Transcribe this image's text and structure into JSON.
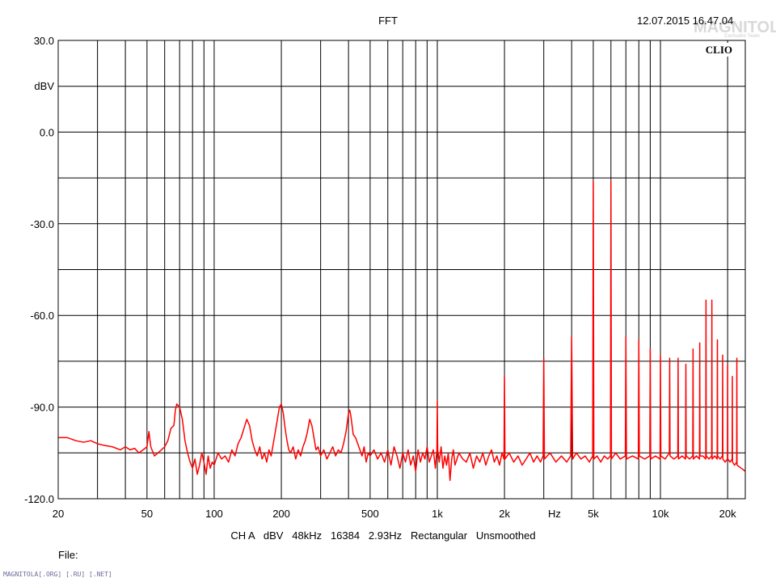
{
  "chart_data": {
    "type": "line",
    "title": "FFT",
    "timestamp": "12.07.2015 16.47.04",
    "brand": "CLIO",
    "xlabel": "Hz",
    "ylabel": "dBV",
    "x_scale": "log",
    "xlim": [
      20,
      24000
    ],
    "ylim": [
      -120,
      30
    ],
    "grid": true,
    "x_ticks": [
      {
        "value": 20,
        "label": "20"
      },
      {
        "value": 50,
        "label": "50"
      },
      {
        "value": 100,
        "label": "100"
      },
      {
        "value": 200,
        "label": "200"
      },
      {
        "value": 500,
        "label": "500"
      },
      {
        "value": 1000,
        "label": "1k"
      },
      {
        "value": 2000,
        "label": "2k"
      },
      {
        "value": 5000,
        "label": "5k"
      },
      {
        "value": 10000,
        "label": "10k"
      },
      {
        "value": 20000,
        "label": "20k"
      }
    ],
    "y_ticks": [
      {
        "value": 30,
        "label": "30.0"
      },
      {
        "value": 0,
        "label": "0.0"
      },
      {
        "value": -30,
        "label": "-30.0"
      },
      {
        "value": -60,
        "label": "-60.0"
      },
      {
        "value": -90,
        "label": "-90.0"
      },
      {
        "value": -120,
        "label": "-120.0"
      }
    ],
    "series": [
      {
        "color": "#ff0000",
        "points": [
          [
            20,
            -100
          ],
          [
            22,
            -100
          ],
          [
            24,
            -101
          ],
          [
            26,
            -101.5
          ],
          [
            28,
            -101
          ],
          [
            30,
            -102
          ],
          [
            32,
            -102.5
          ],
          [
            35,
            -103
          ],
          [
            38,
            -104
          ],
          [
            40,
            -103
          ],
          [
            42,
            -104
          ],
          [
            44,
            -103.5
          ],
          [
            46,
            -105
          ],
          [
            48,
            -104
          ],
          [
            50,
            -103
          ],
          [
            51,
            -98
          ],
          [
            52,
            -103
          ],
          [
            54,
            -106
          ],
          [
            56,
            -105
          ],
          [
            58,
            -104
          ],
          [
            60,
            -103
          ],
          [
            62,
            -101
          ],
          [
            64,
            -97
          ],
          [
            66,
            -96
          ],
          [
            67,
            -91
          ],
          [
            68,
            -89
          ],
          [
            70,
            -90
          ],
          [
            72,
            -94
          ],
          [
            74,
            -101
          ],
          [
            76,
            -105
          ],
          [
            78,
            -108
          ],
          [
            80,
            -110
          ],
          [
            82,
            -107
          ],
          [
            84,
            -112
          ],
          [
            86,
            -109
          ],
          [
            88,
            -105
          ],
          [
            90,
            -108
          ],
          [
            92,
            -112
          ],
          [
            94,
            -106
          ],
          [
            96,
            -110
          ],
          [
            98,
            -108
          ],
          [
            100,
            -109
          ],
          [
            104,
            -105
          ],
          [
            108,
            -107
          ],
          [
            112,
            -106
          ],
          [
            116,
            -108
          ],
          [
            120,
            -104
          ],
          [
            124,
            -106
          ],
          [
            128,
            -102
          ],
          [
            132,
            -100
          ],
          [
            136,
            -97
          ],
          [
            140,
            -94
          ],
          [
            144,
            -96
          ],
          [
            148,
            -101
          ],
          [
            152,
            -104
          ],
          [
            156,
            -106
          ],
          [
            160,
            -103
          ],
          [
            164,
            -107
          ],
          [
            168,
            -105
          ],
          [
            172,
            -108
          ],
          [
            176,
            -104
          ],
          [
            180,
            -106
          ],
          [
            184,
            -102
          ],
          [
            188,
            -98
          ],
          [
            192,
            -94
          ],
          [
            196,
            -90
          ],
          [
            200,
            -89
          ],
          [
            204,
            -92
          ],
          [
            208,
            -97
          ],
          [
            212,
            -101
          ],
          [
            216,
            -104
          ],
          [
            220,
            -105
          ],
          [
            226,
            -103
          ],
          [
            232,
            -107
          ],
          [
            238,
            -104
          ],
          [
            244,
            -106
          ],
          [
            250,
            -103
          ],
          [
            256,
            -101
          ],
          [
            262,
            -98
          ],
          [
            268,
            -94
          ],
          [
            274,
            -96
          ],
          [
            280,
            -100
          ],
          [
            286,
            -104
          ],
          [
            292,
            -103
          ],
          [
            300,
            -106
          ],
          [
            310,
            -104
          ],
          [
            320,
            -107
          ],
          [
            330,
            -105
          ],
          [
            340,
            -103
          ],
          [
            350,
            -106
          ],
          [
            360,
            -104
          ],
          [
            370,
            -105
          ],
          [
            380,
            -102
          ],
          [
            390,
            -98
          ],
          [
            395,
            -95
          ],
          [
            400,
            -92
          ],
          [
            405,
            -91
          ],
          [
            410,
            -93
          ],
          [
            415,
            -96
          ],
          [
            420,
            -99
          ],
          [
            430,
            -100
          ],
          [
            440,
            -102
          ],
          [
            450,
            -104
          ],
          [
            460,
            -106
          ],
          [
            470,
            -103
          ],
          [
            480,
            -108
          ],
          [
            490,
            -105
          ],
          [
            500,
            -106
          ],
          [
            520,
            -104
          ],
          [
            540,
            -107
          ],
          [
            560,
            -105
          ],
          [
            580,
            -108
          ],
          [
            600,
            -104
          ],
          [
            620,
            -109
          ],
          [
            640,
            -103
          ],
          [
            660,
            -106
          ],
          [
            680,
            -110
          ],
          [
            700,
            -105
          ],
          [
            720,
            -108
          ],
          [
            740,
            -104
          ],
          [
            760,
            -109
          ],
          [
            780,
            -106
          ],
          [
            800,
            -111
          ],
          [
            820,
            -104
          ],
          [
            840,
            -108
          ],
          [
            860,
            -105
          ],
          [
            880,
            -107
          ],
          [
            900,
            -103
          ],
          [
            920,
            -108
          ],
          [
            940,
            -106
          ],
          [
            960,
            -104
          ],
          [
            980,
            -110
          ],
          [
            996,
            -104
          ],
          [
            1000,
            -88
          ],
          [
            1004,
            -104
          ],
          [
            1020,
            -108
          ],
          [
            1040,
            -103
          ],
          [
            1060,
            -110
          ],
          [
            1080,
            -106
          ],
          [
            1100,
            -109
          ],
          [
            1120,
            -105
          ],
          [
            1140,
            -114
          ],
          [
            1160,
            -107
          ],
          [
            1180,
            -104
          ],
          [
            1200,
            -109
          ],
          [
            1250,
            -105
          ],
          [
            1300,
            -107
          ],
          [
            1350,
            -108
          ],
          [
            1400,
            -105
          ],
          [
            1450,
            -110
          ],
          [
            1500,
            -106
          ],
          [
            1550,
            -108
          ],
          [
            1600,
            -105
          ],
          [
            1650,
            -109
          ],
          [
            1700,
            -106
          ],
          [
            1750,
            -104
          ],
          [
            1800,
            -108
          ],
          [
            1850,
            -106
          ],
          [
            1900,
            -109
          ],
          [
            1950,
            -105
          ],
          [
            1990,
            -107
          ],
          [
            2000,
            -80
          ],
          [
            2010,
            -107
          ],
          [
            2100,
            -105
          ],
          [
            2200,
            -108
          ],
          [
            2300,
            -106
          ],
          [
            2400,
            -109
          ],
          [
            2500,
            -107
          ],
          [
            2600,
            -105
          ],
          [
            2700,
            -108
          ],
          [
            2800,
            -106
          ],
          [
            2900,
            -108
          ],
          [
            2980,
            -106
          ],
          [
            3000,
            -74
          ],
          [
            3020,
            -107
          ],
          [
            3200,
            -105
          ],
          [
            3400,
            -108
          ],
          [
            3600,
            -106
          ],
          [
            3800,
            -108
          ],
          [
            3960,
            -106
          ],
          [
            4000,
            -67
          ],
          [
            4040,
            -107
          ],
          [
            4200,
            -105
          ],
          [
            4400,
            -107
          ],
          [
            4600,
            -106
          ],
          [
            4800,
            -108
          ],
          [
            4970,
            -106
          ],
          [
            5000,
            -16
          ],
          [
            5030,
            -107
          ],
          [
            5200,
            -106
          ],
          [
            5400,
            -108
          ],
          [
            5600,
            -106
          ],
          [
            5800,
            -107
          ],
          [
            5970,
            -106
          ],
          [
            6000,
            -16
          ],
          [
            6030,
            -107
          ],
          [
            6300,
            -105
          ],
          [
            6600,
            -107
          ],
          [
            6960,
            -106
          ],
          [
            7000,
            -67
          ],
          [
            7040,
            -107
          ],
          [
            7500,
            -106
          ],
          [
            7960,
            -107
          ],
          [
            8000,
            -68
          ],
          [
            8040,
            -106
          ],
          [
            8500,
            -107
          ],
          [
            8960,
            -106
          ],
          [
            9000,
            -71
          ],
          [
            9040,
            -107
          ],
          [
            9500,
            -106
          ],
          [
            9960,
            -107
          ],
          [
            10000,
            -73
          ],
          [
            10040,
            -106
          ],
          [
            10500,
            -107
          ],
          [
            10960,
            -105
          ],
          [
            11000,
            -74
          ],
          [
            11040,
            -106
          ],
          [
            11500,
            -107
          ],
          [
            11960,
            -106
          ],
          [
            12000,
            -74
          ],
          [
            12040,
            -107
          ],
          [
            12500,
            -106
          ],
          [
            12960,
            -107
          ],
          [
            13000,
            -76
          ],
          [
            13040,
            -106
          ],
          [
            13500,
            -107
          ],
          [
            13960,
            -106
          ],
          [
            14000,
            -71
          ],
          [
            14040,
            -107
          ],
          [
            14500,
            -106
          ],
          [
            14960,
            -107
          ],
          [
            15000,
            -69
          ],
          [
            15040,
            -106
          ],
          [
            15500,
            -106
          ],
          [
            15960,
            -107
          ],
          [
            16000,
            -55
          ],
          [
            16040,
            -106
          ],
          [
            16500,
            -107
          ],
          [
            16960,
            -106
          ],
          [
            17000,
            -55
          ],
          [
            17040,
            -107
          ],
          [
            17500,
            -106
          ],
          [
            17960,
            -107
          ],
          [
            18000,
            -68
          ],
          [
            18040,
            -106
          ],
          [
            18500,
            -107
          ],
          [
            18960,
            -106
          ],
          [
            19000,
            -73
          ],
          [
            19040,
            -107
          ],
          [
            19500,
            -108
          ],
          [
            19960,
            -107
          ],
          [
            20000,
            -76
          ],
          [
            20040,
            -107
          ],
          [
            20500,
            -108
          ],
          [
            20960,
            -107
          ],
          [
            21000,
            -80
          ],
          [
            21040,
            -108
          ],
          [
            21500,
            -109
          ],
          [
            21960,
            -108
          ],
          [
            22000,
            -74
          ],
          [
            22040,
            -109
          ],
          [
            23000,
            -110
          ],
          [
            24000,
            -111
          ]
        ]
      }
    ]
  },
  "footer": {
    "settings": "CH A   dBV   48kHz   16384   2.93Hz   Rectangular   Unsmoothed",
    "file_label": "File:",
    "site": "MAGNITOLA[.ORG] [.RU] [.NET]"
  },
  "watermark": {
    "text": "MAGNITOLA",
    "subtext": "CarAudio Team"
  }
}
